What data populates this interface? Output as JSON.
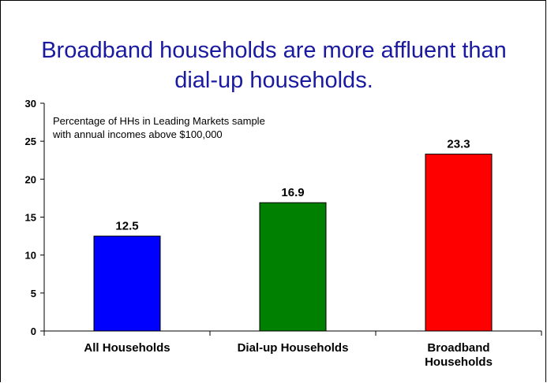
{
  "slide": {
    "title_lines": [
      "Broadband households are more affluent than",
      "dial-up households."
    ],
    "note_lines": [
      "Percentage of  HHs in Leading Markets sample",
      "with annual incomes above $100,000"
    ]
  },
  "chart_data": {
    "type": "bar",
    "categories": [
      [
        "All Households"
      ],
      [
        "Dial-up Households"
      ],
      [
        "Broadband",
        "Households"
      ]
    ],
    "values": [
      12.5,
      16.9,
      23.3
    ],
    "value_labels": [
      "12.5",
      "16.9",
      "23.3"
    ],
    "colors": [
      "#0000ff",
      "#008000",
      "#ff0000"
    ],
    "ylim": [
      0,
      30
    ],
    "yticks": [
      0,
      5,
      10,
      15,
      20,
      25,
      30
    ],
    "ytick_labels": [
      "0",
      "5",
      "10",
      "15",
      "20",
      "25",
      "30"
    ],
    "xlabel": "",
    "ylabel": "",
    "grid": false,
    "legend": "none"
  }
}
